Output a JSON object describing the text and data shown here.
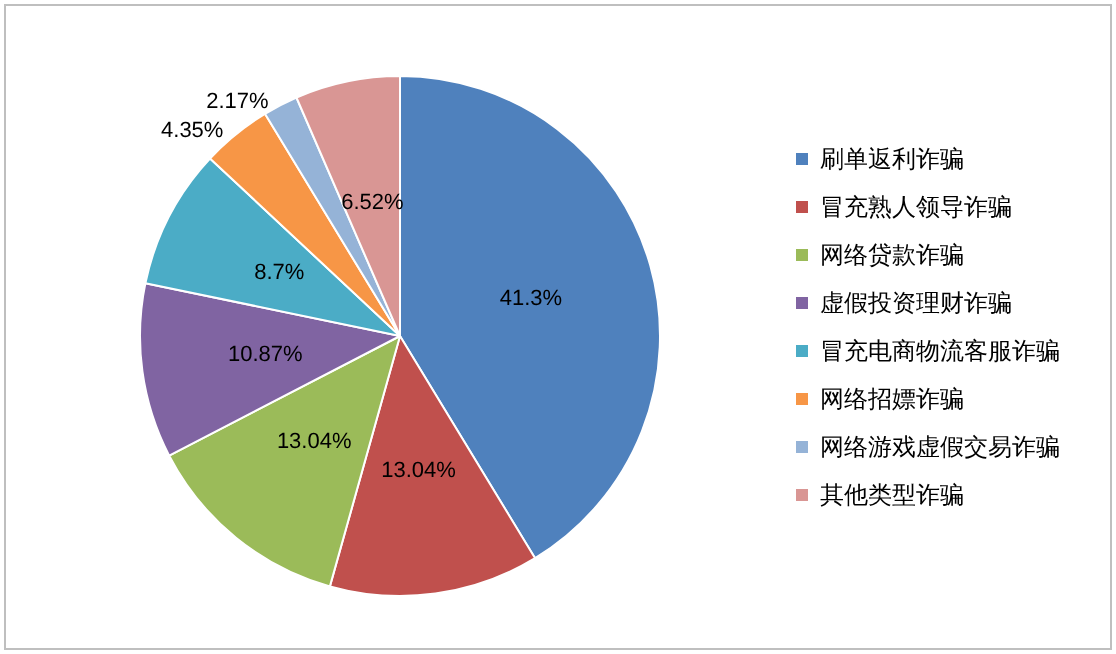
{
  "chart_data": {
    "type": "pie",
    "categories": [
      "刷单返利诈骗",
      "冒充熟人领导诈骗",
      "网络贷款诈骗",
      "虚假投资理财诈骗",
      "冒充电商物流客服诈骗",
      "网络招嫖诈骗",
      "网络游戏虚假交易诈骗",
      "其他类型诈骗"
    ],
    "values": [
      41.3,
      13.04,
      13.04,
      10.87,
      8.7,
      4.35,
      2.17,
      6.52
    ],
    "value_labels": [
      "41.3%",
      "13.04%",
      "13.04%",
      "10.87%",
      "8.7%",
      "4.35%",
      "2.17%",
      "6.52%"
    ],
    "colors": [
      "#4f81bd",
      "#c0504d",
      "#9bbb59",
      "#8064a2",
      "#4bacc6",
      "#f79646",
      "#95b3d7",
      "#d99694"
    ],
    "legend": "right"
  }
}
